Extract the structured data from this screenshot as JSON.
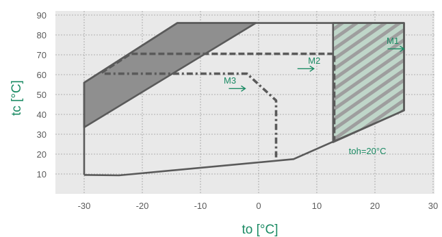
{
  "chart_data": {
    "type": "line",
    "xlabel": "to [°C]",
    "ylabel": "tc [°C]",
    "xlim": [
      -35,
      30
    ],
    "ylim": [
      0,
      90
    ],
    "x_ticks": [
      -30,
      -20,
      -10,
      0,
      10,
      20,
      30
    ],
    "y_ticks": [
      10,
      20,
      30,
      40,
      50,
      60,
      70,
      80,
      90
    ],
    "grid": true,
    "colors": {
      "plot_bg": "#e9e9e9",
      "outline": "#5a5a5a",
      "dark_fill": "#8f8f8f",
      "hatch_fill": "#bfd6c9",
      "accent": "#1a8a63"
    },
    "series": [
      {
        "style": "solid-envelope",
        "points": [
          [
            -30,
            9.5
          ],
          [
            -24,
            9.3
          ],
          [
            6,
            17.5
          ],
          [
            25,
            42
          ],
          [
            25,
            86
          ],
          [
            -14,
            86
          ],
          [
            -30,
            56
          ],
          [
            -30,
            9.5
          ]
        ]
      },
      {
        "style": "dashed",
        "points": [
          [
            -27,
            61
          ],
          [
            -22,
            70.5
          ],
          [
            13,
            70.5
          ],
          [
            13,
            27
          ]
        ]
      },
      {
        "style": "dash-dot",
        "points": [
          [
            -26.5,
            60.5
          ],
          [
            -2,
            60.5
          ],
          [
            3,
            47
          ],
          [
            3,
            17
          ]
        ]
      }
    ],
    "regions": [
      {
        "style": "dark-filled",
        "points": [
          [
            -30,
            56
          ],
          [
            -14,
            86
          ],
          [
            -0.5,
            86
          ],
          [
            -30,
            33.5
          ]
        ]
      },
      {
        "style": "hatched",
        "points": [
          [
            12.8,
            86
          ],
          [
            25,
            86
          ],
          [
            25,
            42
          ],
          [
            12.8,
            26
          ]
        ]
      }
    ],
    "annotations": [
      {
        "text": "M1",
        "x": 22,
        "y": 75.5,
        "arrow_to": [
          25,
          73
        ]
      },
      {
        "text": "M2",
        "x": 8.5,
        "y": 65.5,
        "arrow_to": [
          9.5,
          63
        ]
      },
      {
        "text": "M3",
        "x": -6,
        "y": 55.5,
        "arrow_to": [
          -2.3,
          53
        ]
      },
      {
        "text": "toh=20°C",
        "x": 15.5,
        "y": 20
      }
    ]
  }
}
